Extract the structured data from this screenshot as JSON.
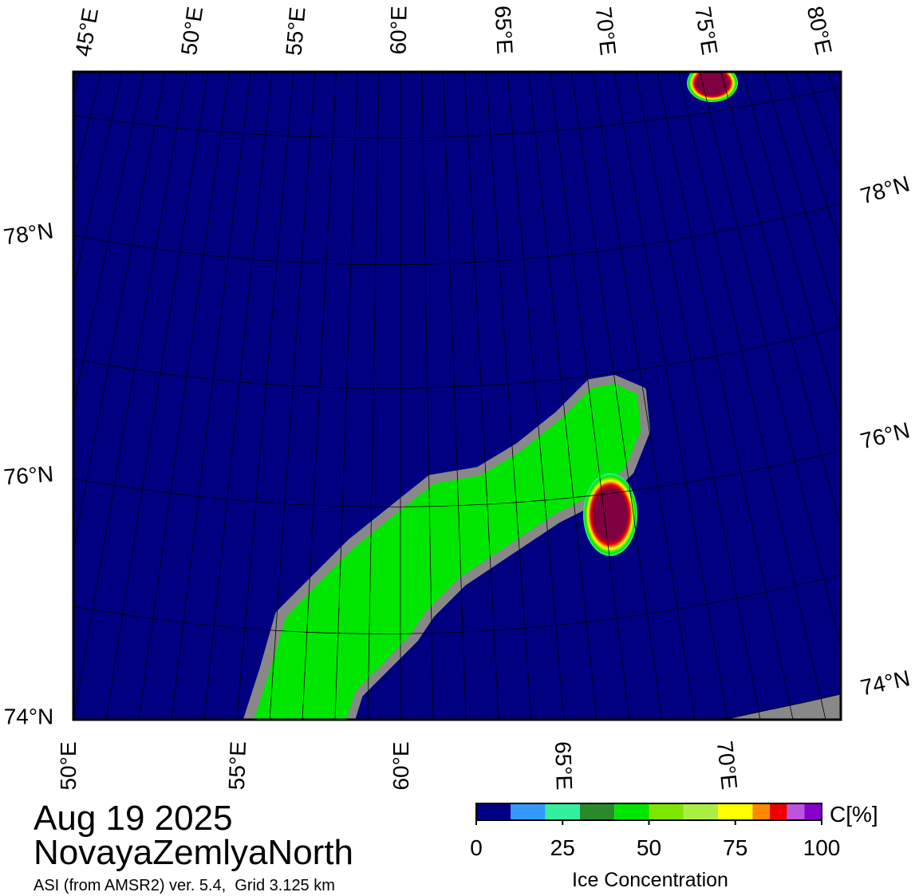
{
  "map": {
    "top_lon_labels": [
      "45°E",
      "50°E",
      "55°E",
      "60°E",
      "65°E",
      "70°E",
      "75°E",
      "80°E"
    ],
    "left_lat_labels": [
      "78°N",
      "76°N",
      "74°N"
    ],
    "right_lat_labels": [
      "78°N",
      "76°N",
      "74°N"
    ],
    "bottom_lon_labels": [
      "50°E",
      "55°E",
      "60°E",
      "65°E",
      "70°E"
    ]
  },
  "date": "Aug 19 2025",
  "region": "NovayaZemlyaNorth",
  "source": "ASI (from AMSR2) ver. 5.4,  Grid 3.125 km",
  "colorbar": {
    "title": "Ice Concentration",
    "unit": "C[%]",
    "lim": [
      0,
      100
    ],
    "ticks": [
      0,
      25,
      50,
      75,
      100
    ],
    "bounds": [
      0,
      10,
      20,
      30,
      40,
      50,
      60,
      70,
      80,
      85,
      90,
      95,
      100
    ],
    "colors": [
      "#000080",
      "#3399ff",
      "#33f0a0",
      "#2a8a2a",
      "#00e600",
      "#7ee600",
      "#aaee44",
      "#ffff00",
      "#ff8800",
      "#ee0000",
      "#bb55dd",
      "#8800cc"
    ]
  }
}
